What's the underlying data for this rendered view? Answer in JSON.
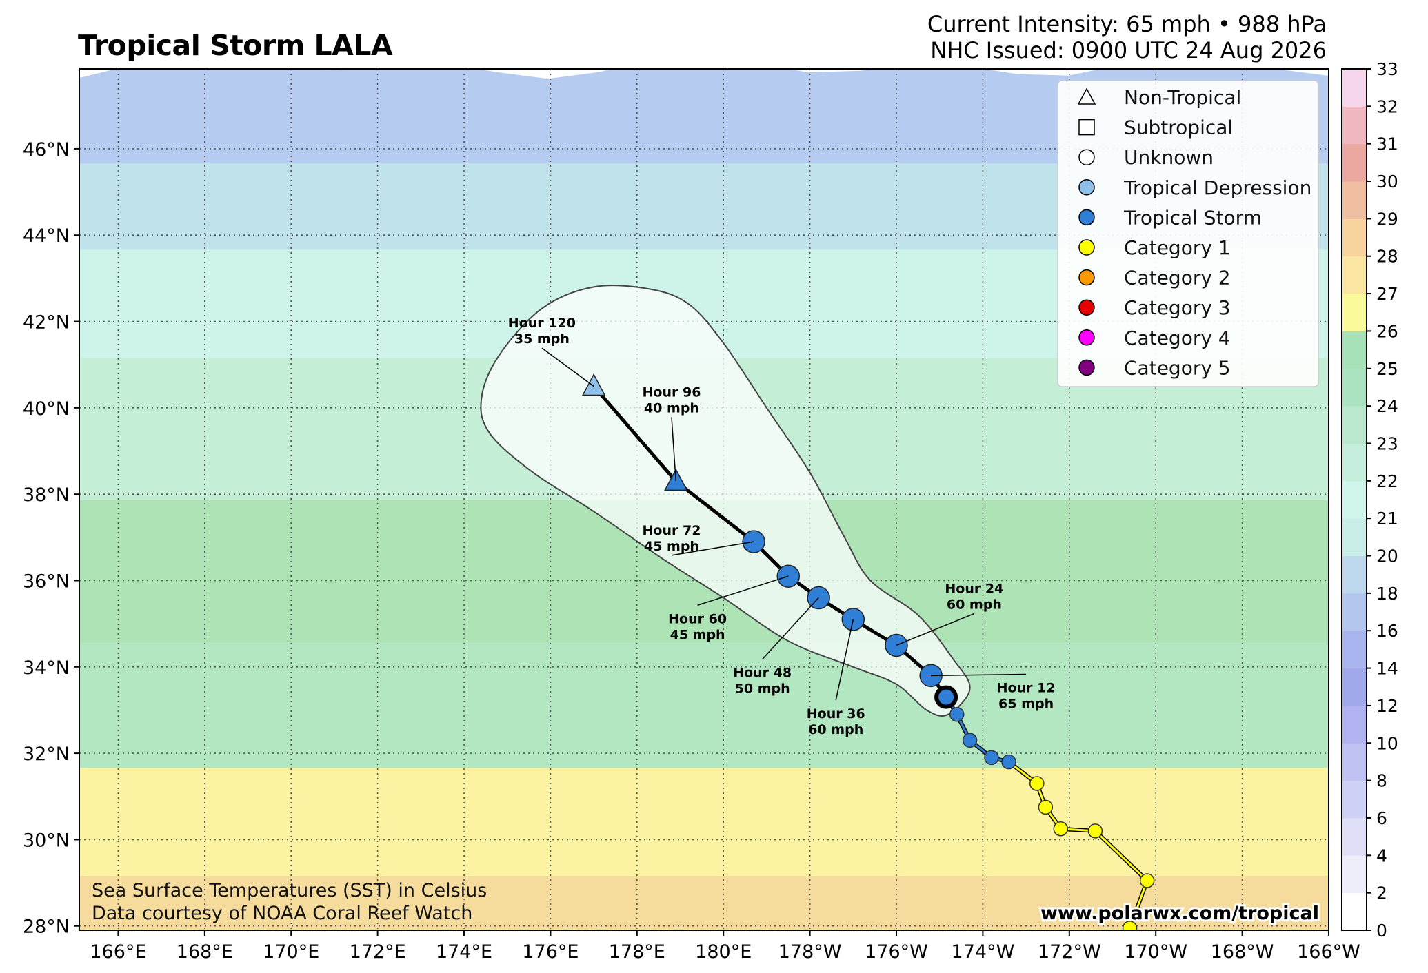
{
  "header": {
    "title": "Tropical Storm LALA",
    "intensity_line": "Current Intensity: 65 mph • 988 hPa",
    "issued_line": "NHC Issued: 0900 UTC 24 Aug 2026"
  },
  "map": {
    "lon_ticks": [
      {
        "lon": 166,
        "label": "166°E"
      },
      {
        "lon": 168,
        "label": "168°E"
      },
      {
        "lon": 170,
        "label": "170°E"
      },
      {
        "lon": 172,
        "label": "172°E"
      },
      {
        "lon": 174,
        "label": "174°E"
      },
      {
        "lon": 176,
        "label": "176°E"
      },
      {
        "lon": 178,
        "label": "178°E"
      },
      {
        "lon": 180,
        "label": "180°E"
      },
      {
        "lon": 182,
        "label": "178°W"
      },
      {
        "lon": 184,
        "label": "176°W"
      },
      {
        "lon": 186,
        "label": "174°W"
      },
      {
        "lon": 188,
        "label": "172°W"
      },
      {
        "lon": 190,
        "label": "170°W"
      },
      {
        "lon": 192,
        "label": "168°W"
      },
      {
        "lon": 194,
        "label": "166°W"
      }
    ],
    "lat_ticks": [
      {
        "lat": 28,
        "label": "28°N"
      },
      {
        "lat": 30,
        "label": "30°N"
      },
      {
        "lat": 32,
        "label": "32°N"
      },
      {
        "lat": 34,
        "label": "34°N"
      },
      {
        "lat": 36,
        "label": "36°N"
      },
      {
        "lat": 38,
        "label": "38°N"
      },
      {
        "lat": 40,
        "label": "40°N"
      },
      {
        "lat": 42,
        "label": "42°N"
      },
      {
        "lat": 44,
        "label": "44°N"
      },
      {
        "lat": 46,
        "label": "46°N"
      }
    ],
    "sst_bands": [
      {
        "lat_from": 27.9,
        "lat_to": 29.8,
        "color": "#f6dc9c"
      },
      {
        "lat_from": 29.8,
        "lat_to": 32.3,
        "color": "#fbf3a2"
      },
      {
        "lat_from": 32.3,
        "lat_to": 35.2,
        "color": "#b3e7c2"
      },
      {
        "lat_from": 35.2,
        "lat_to": 38.5,
        "color": "#aee3b6"
      },
      {
        "lat_from": 38.5,
        "lat_to": 41.8,
        "color": "#c4efd6"
      },
      {
        "lat_from": 41.8,
        "lat_to": 44.3,
        "color": "#cdf3ea"
      },
      {
        "lat_from": 44.3,
        "lat_to": 46.3,
        "color": "#c0e2ea"
      },
      {
        "lat_from": 46.3,
        "lat_to": 47.9,
        "color": "#b6cbf0"
      }
    ]
  },
  "legend": {
    "items": [
      {
        "label": "Non-Tropical",
        "shape": "triangle",
        "color": "#ffffff"
      },
      {
        "label": "Subtropical",
        "shape": "square",
        "color": "#ffffff"
      },
      {
        "label": "Unknown",
        "shape": "circle",
        "color": "#ffffff"
      },
      {
        "label": "Tropical Depression",
        "shape": "circle",
        "color": "#8ec0ea"
      },
      {
        "label": "Tropical Storm",
        "shape": "circle",
        "color": "#2f7fd6"
      },
      {
        "label": "Category 1",
        "shape": "circle",
        "color": "#ffff00"
      },
      {
        "label": "Category 2",
        "shape": "circle",
        "color": "#ff9900"
      },
      {
        "label": "Category 3",
        "shape": "circle",
        "color": "#e60000"
      },
      {
        "label": "Category 4",
        "shape": "circle",
        "color": "#ff00ff"
      },
      {
        "label": "Category 5",
        "shape": "circle",
        "color": "#800080"
      }
    ]
  },
  "colorbar": {
    "ticks": [
      "0",
      "2",
      "4",
      "6",
      "8",
      "10",
      "12",
      "14",
      "16",
      "18",
      "20",
      "21",
      "22",
      "23",
      "24",
      "25",
      "26",
      "27",
      "28",
      "29",
      "30",
      "31",
      "32",
      "33"
    ],
    "colors": [
      "#ffffff",
      "#eeeefb",
      "#dfdff8",
      "#cfd0f5",
      "#bfc2f2",
      "#b0b3f0",
      "#a2a8ec",
      "#a9b5ee",
      "#b3c6ee",
      "#bdd7ec",
      "#c8ece6",
      "#cff5ec",
      "#c6eedd",
      "#b9e8cf",
      "#abe2bf",
      "#a7e1b8",
      "#fbfa9a",
      "#fbe7a3",
      "#f6d39c",
      "#f0bea0",
      "#eba8a0",
      "#f0b7c0",
      "#f6d6ec"
    ]
  },
  "track": {
    "past": [
      {
        "lon": 189.4,
        "lat": 27.95,
        "cat": "Category 1"
      },
      {
        "lon": 189.8,
        "lat": 29.05,
        "cat": "Category 1"
      },
      {
        "lon": 188.6,
        "lat": 30.2,
        "cat": "Category 1"
      },
      {
        "lon": 187.8,
        "lat": 30.25,
        "cat": "Category 1"
      },
      {
        "lon": 187.45,
        "lat": 30.75,
        "cat": "Category 1"
      },
      {
        "lon": 187.25,
        "lat": 31.3,
        "cat": "Category 1"
      },
      {
        "lon": 186.6,
        "lat": 31.8,
        "cat": "Tropical Storm"
      },
      {
        "lon": 186.2,
        "lat": 31.9,
        "cat": "Tropical Storm"
      },
      {
        "lon": 185.7,
        "lat": 32.3,
        "cat": "Tropical Storm"
      },
      {
        "lon": 185.4,
        "lat": 32.9,
        "cat": "Tropical Storm"
      }
    ],
    "current": {
      "lon": 185.15,
      "lat": 33.3
    },
    "forecast": [
      {
        "hour": 12,
        "lon": 184.8,
        "lat": 33.8,
        "cat": "Tropical Storm",
        "label1": "Hour 12",
        "label2": "65 mph",
        "tlon": 187.0,
        "tlat": 33.35
      },
      {
        "hour": 24,
        "lon": 184.0,
        "lat": 34.5,
        "cat": "Tropical Storm",
        "label1": "Hour 24",
        "label2": "60 mph",
        "tlon": 185.8,
        "tlat": 35.65
      },
      {
        "hour": 36,
        "lon": 183.0,
        "lat": 35.1,
        "cat": "Tropical Storm",
        "label1": "Hour 36",
        "label2": "60 mph",
        "tlon": 182.6,
        "tlat": 32.75
      },
      {
        "hour": 48,
        "lon": 182.2,
        "lat": 35.6,
        "cat": "Tropical Storm",
        "label1": "Hour 48",
        "label2": "50 mph",
        "tlon": 180.9,
        "tlat": 33.7
      },
      {
        "hour": 60,
        "lon": 181.5,
        "lat": 36.1,
        "cat": "Tropical Storm",
        "label1": "Hour 60",
        "label2": "45 mph",
        "tlon": 179.4,
        "tlat": 34.95
      },
      {
        "hour": 72,
        "lon": 180.7,
        "lat": 36.9,
        "cat": "Tropical Storm",
        "label1": "Hour 72",
        "label2": "45 mph",
        "tlon": 178.8,
        "tlat": 37.0
      },
      {
        "hour": 96,
        "lon": 178.9,
        "lat": 38.3,
        "cat": "Non-Tropical",
        "label1": "Hour 96",
        "label2": "40 mph",
        "tlon": 178.8,
        "tlat": 40.2
      },
      {
        "hour": 120,
        "lon": 177.0,
        "lat": 40.5,
        "cat": "Non-Tropical",
        "label1": "Hour 120",
        "label2": "35 mph",
        "tlon": 175.8,
        "tlat": 41.8
      }
    ],
    "cone": [
      [
        185.2,
        32.9
      ],
      [
        185.7,
        33.5
      ],
      [
        185.3,
        34.2
      ],
      [
        184.5,
        35.2
      ],
      [
        183.4,
        36.0
      ],
      [
        182.8,
        37.0
      ],
      [
        182.0,
        38.5
      ],
      [
        181.0,
        40.0
      ],
      [
        180.0,
        41.5
      ],
      [
        179.2,
        42.4
      ],
      [
        178.3,
        42.75
      ],
      [
        177.0,
        42.8
      ],
      [
        175.8,
        42.3
      ],
      [
        174.8,
        41.2
      ],
      [
        174.4,
        40.2
      ],
      [
        174.6,
        39.4
      ],
      [
        175.6,
        38.5
      ],
      [
        177.0,
        37.6
      ],
      [
        178.6,
        36.5
      ],
      [
        180.0,
        35.6
      ],
      [
        181.5,
        34.6
      ],
      [
        183.0,
        34.0
      ],
      [
        184.0,
        33.6
      ],
      [
        184.7,
        33.0
      ]
    ]
  },
  "footer": {
    "sst_credit_line1": "Sea Surface Temperatures (SST) in Celsius",
    "sst_credit_line2": "Data courtesy of NOAA Coral Reef Watch",
    "website": "www.polarwx.com/tropical"
  }
}
